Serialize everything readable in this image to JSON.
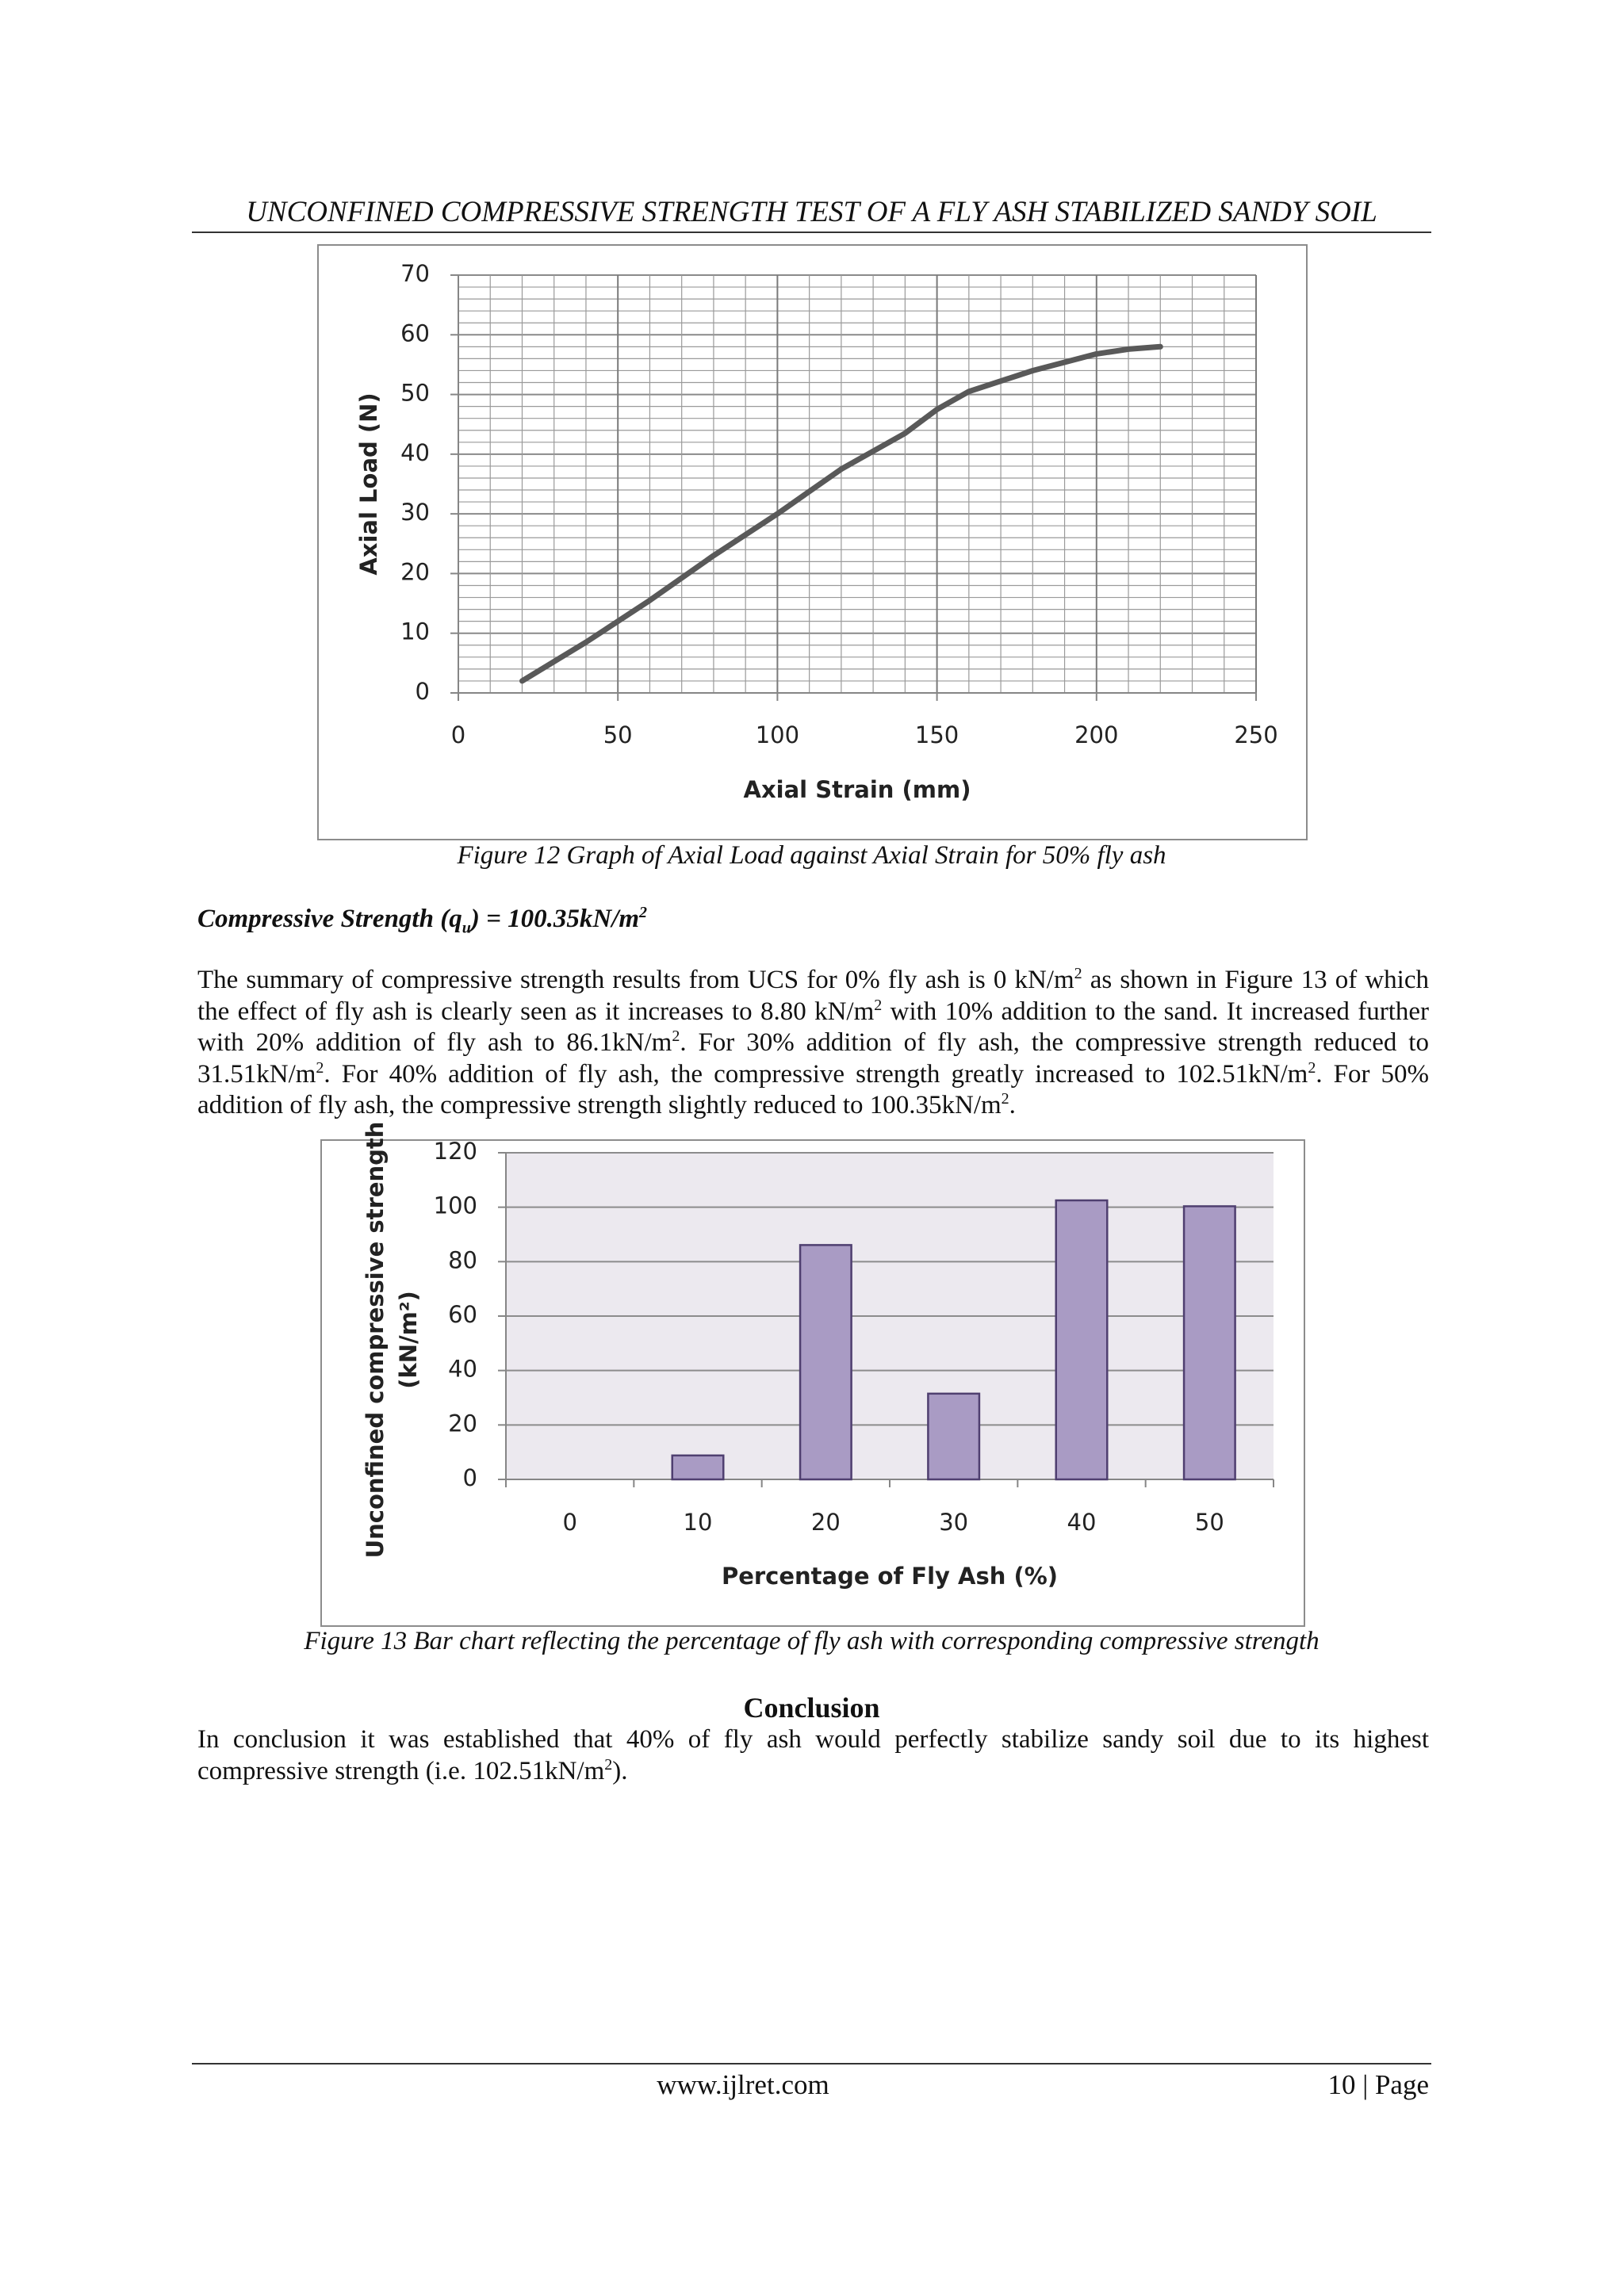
{
  "header": {
    "title": "UNCONFINED COMPRESSIVE STRENGTH TEST OF A FLY ASH STABILIZED SANDY SOIL"
  },
  "chart_data": [
    {
      "type": "line",
      "xlabel": "Axial Strain (mm)",
      "ylabel": "Axial Load (N)",
      "x": [
        20,
        40,
        60,
        80,
        100,
        120,
        140,
        150,
        160,
        180,
        200,
        210,
        220
      ],
      "values": [
        2,
        8.5,
        15.5,
        23,
        30,
        37.5,
        43.5,
        47.5,
        50.5,
        54,
        56.8,
        57.6,
        58
      ],
      "color": "#595959",
      "xlim": [
        0,
        250
      ],
      "xticks": [
        0,
        50,
        100,
        150,
        200,
        250
      ],
      "ylim": [
        0,
        70
      ],
      "yticks": [
        0,
        10,
        20,
        30,
        40,
        50,
        60,
        70
      ],
      "grid": true
    },
    {
      "type": "bar",
      "xlabel": "Percentage of Fly Ash (%)",
      "ylabel": [
        "Unconfined compressive strength",
        "(kN/m²)"
      ],
      "categories": [
        "0",
        "10",
        "20",
        "30",
        "40",
        "50"
      ],
      "values": [
        0,
        8.8,
        86.1,
        31.51,
        102.51,
        100.35
      ],
      "color": "#a99bc4",
      "ylim": [
        0,
        120
      ],
      "yticks": [
        0,
        20,
        40,
        60,
        80,
        100,
        120
      ],
      "grid": true
    }
  ],
  "figures": [
    {
      "caption": "Figure 12 Graph of Axial Load against Axial Strain for 50% fly ash"
    },
    {
      "caption": "Figure 13 Bar chart reflecting the percentage of fly ash with corresponding compressive strength"
    }
  ],
  "result": [
    {
      "text": "Compressive Strength (q",
      "sub": "u"
    },
    {
      "text": ") = 100.35kN/m",
      "sup": "2"
    }
  ],
  "paragraph": [
    {
      "text": "The summary of compressive strength results from UCS  for 0% fly ash is 0 kN/m",
      "sup": "2"
    },
    {
      "text": "  as shown in Figure 13  of which the effect of fly ash is clearly seen as it increases to 8.80 kN/m",
      "sup": "2"
    },
    {
      "text": " with 10% addition to the sand. It increased further with 20% addition of fly ash to 86.1kN/m",
      "sup": "2"
    },
    {
      "text": ". For 30% addition of fly ash, the compressive strength reduced to 31.51kN/m",
      "sup": "2"
    },
    {
      "text": ". For 40% addition of fly ash, the compressive strength greatly increased to 102.51kN/m",
      "sup": "2"
    },
    {
      "text": ". For 50% addition of fly ash, the compressive strength slightly reduced to 100.35kN/m",
      "sup": "2"
    },
    {
      "text": "."
    }
  ],
  "conclusion": {
    "heading": "Conclusion",
    "text": [
      {
        "text": "In conclusion it was established that  40% of fly ash would perfectly stabilize sandy soil due to its highest compressive strength (i.e. 102.51kN/m",
        "sup": "2"
      },
      {
        "text": ")."
      }
    ]
  },
  "footer": {
    "url": "www.ijlret.com",
    "page": "10 | Page"
  }
}
